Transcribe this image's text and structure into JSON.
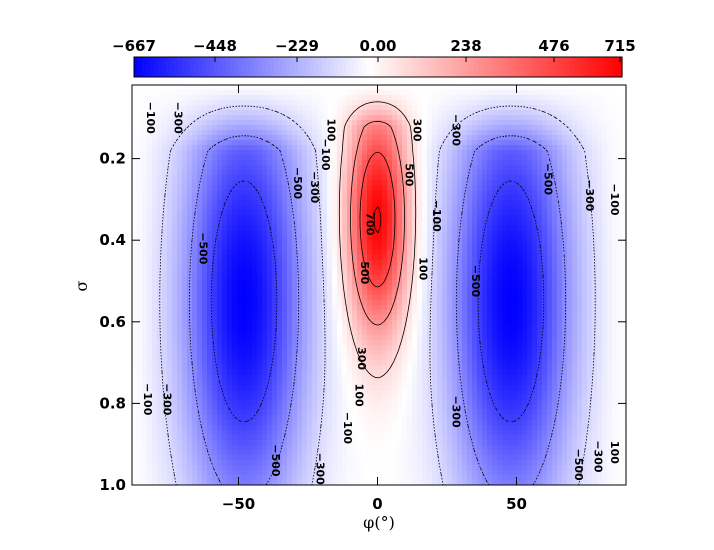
{
  "chart_data": {
    "type": "heatmap",
    "xlabel": "φ(°)",
    "ylabel": "σ",
    "xlim": [
      -88,
      88
    ],
    "ylim": [
      1.0,
      0.02
    ],
    "y_reversed": true,
    "x_ticks": [
      -50,
      0,
      50
    ],
    "x_tick_labels": [
      "−50",
      "0",
      "50"
    ],
    "y_ticks": [
      0.2,
      0.4,
      0.6,
      0.8,
      1.0
    ],
    "y_tick_labels": [
      "0.2",
      "0.4",
      "0.6",
      "0.8",
      "1.0"
    ],
    "colorbar": {
      "min": -667,
      "max": 715,
      "tick_values": [
        -667,
        -448,
        -229,
        0,
        238,
        476,
        715
      ],
      "tick_labels": [
        "−667",
        "−448",
        "−229",
        "0.00",
        "238",
        "476",
        "715"
      ],
      "colors": {
        "negative": "#0000ff",
        "zero": "#ffffff",
        "positive": "#ff0000"
      }
    },
    "contour_levels": [
      -500,
      -300,
      -100,
      100,
      300,
      500,
      700
    ],
    "contour_style": {
      "negative": "dotted",
      "positive": "solid"
    },
    "field_features": [
      {
        "name": "positive core",
        "phi": 0,
        "sigma": 0.35,
        "value": 715
      },
      {
        "name": "southern negative core",
        "phi": -48,
        "sigma": 0.45,
        "value": -667
      },
      {
        "name": "northern negative core",
        "phi": 48,
        "sigma": 0.45,
        "value": -667
      }
    ],
    "contour_labels": [
      {
        "text": "−100",
        "phi": -83,
        "sigma": 0.1
      },
      {
        "text": "−300",
        "phi": -73,
        "sigma": 0.1
      },
      {
        "text": "−500",
        "phi": -64,
        "sigma": 0.42
      },
      {
        "text": "−500",
        "phi": -30,
        "sigma": 0.26
      },
      {
        "text": "−300",
        "phi": -24,
        "sigma": 0.27
      },
      {
        "text": "−100",
        "phi": -20,
        "sigma": 0.19
      },
      {
        "text": "100",
        "phi": -18,
        "sigma": 0.13
      },
      {
        "text": "300",
        "phi": 13,
        "sigma": 0.13
      },
      {
        "text": "500",
        "phi": 10,
        "sigma": 0.24
      },
      {
        "text": "700",
        "phi": -4,
        "sigma": 0.36
      },
      {
        "text": "500",
        "phi": -6,
        "sigma": 0.48
      },
      {
        "text": "−100",
        "phi": 20,
        "sigma": 0.34
      },
      {
        "text": "100",
        "phi": 15,
        "sigma": 0.47
      },
      {
        "text": "−300",
        "phi": 27,
        "sigma": 0.13
      },
      {
        "text": "300",
        "phi": -7,
        "sigma": 0.69
      },
      {
        "text": "100",
        "phi": -8,
        "sigma": 0.78
      },
      {
        "text": "−100",
        "phi": -12,
        "sigma": 0.86
      },
      {
        "text": "−300",
        "phi": -22,
        "sigma": 0.96
      },
      {
        "text": "−500",
        "phi": -38,
        "sigma": 0.94
      },
      {
        "text": "−100",
        "phi": -84,
        "sigma": 0.79
      },
      {
        "text": "−300",
        "phi": -77,
        "sigma": 0.79
      },
      {
        "text": "−500",
        "phi": 34,
        "sigma": 0.5
      },
      {
        "text": "−300",
        "phi": 27,
        "sigma": 0.82
      },
      {
        "text": "−500",
        "phi": 60,
        "sigma": 0.25
      },
      {
        "text": "−300",
        "phi": 75,
        "sigma": 0.29
      },
      {
        "text": "−100",
        "phi": 84,
        "sigma": 0.3
      },
      {
        "text": "−500",
        "phi": 71,
        "sigma": 0.95
      },
      {
        "text": "−300",
        "phi": 78,
        "sigma": 0.93
      },
      {
        "text": "100",
        "phi": 84,
        "sigma": 0.92
      }
    ]
  }
}
